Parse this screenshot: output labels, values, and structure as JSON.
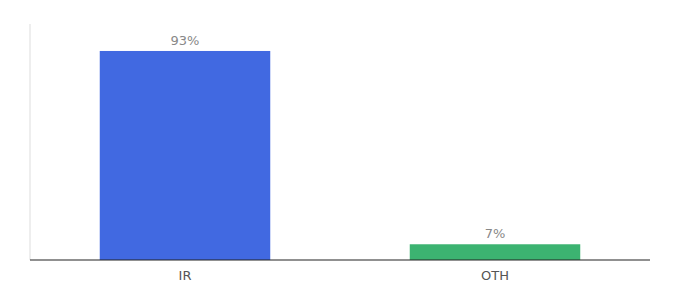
{
  "chart_data": {
    "type": "bar",
    "categories": [
      "IR",
      "OTH"
    ],
    "values": [
      93,
      7
    ],
    "value_labels": [
      "93%",
      "7%"
    ],
    "colors": [
      "#4169E1",
      "#3CB371"
    ],
    "ylim": [
      0,
      105
    ],
    "data_labels": true,
    "tick_labels": "x"
  }
}
